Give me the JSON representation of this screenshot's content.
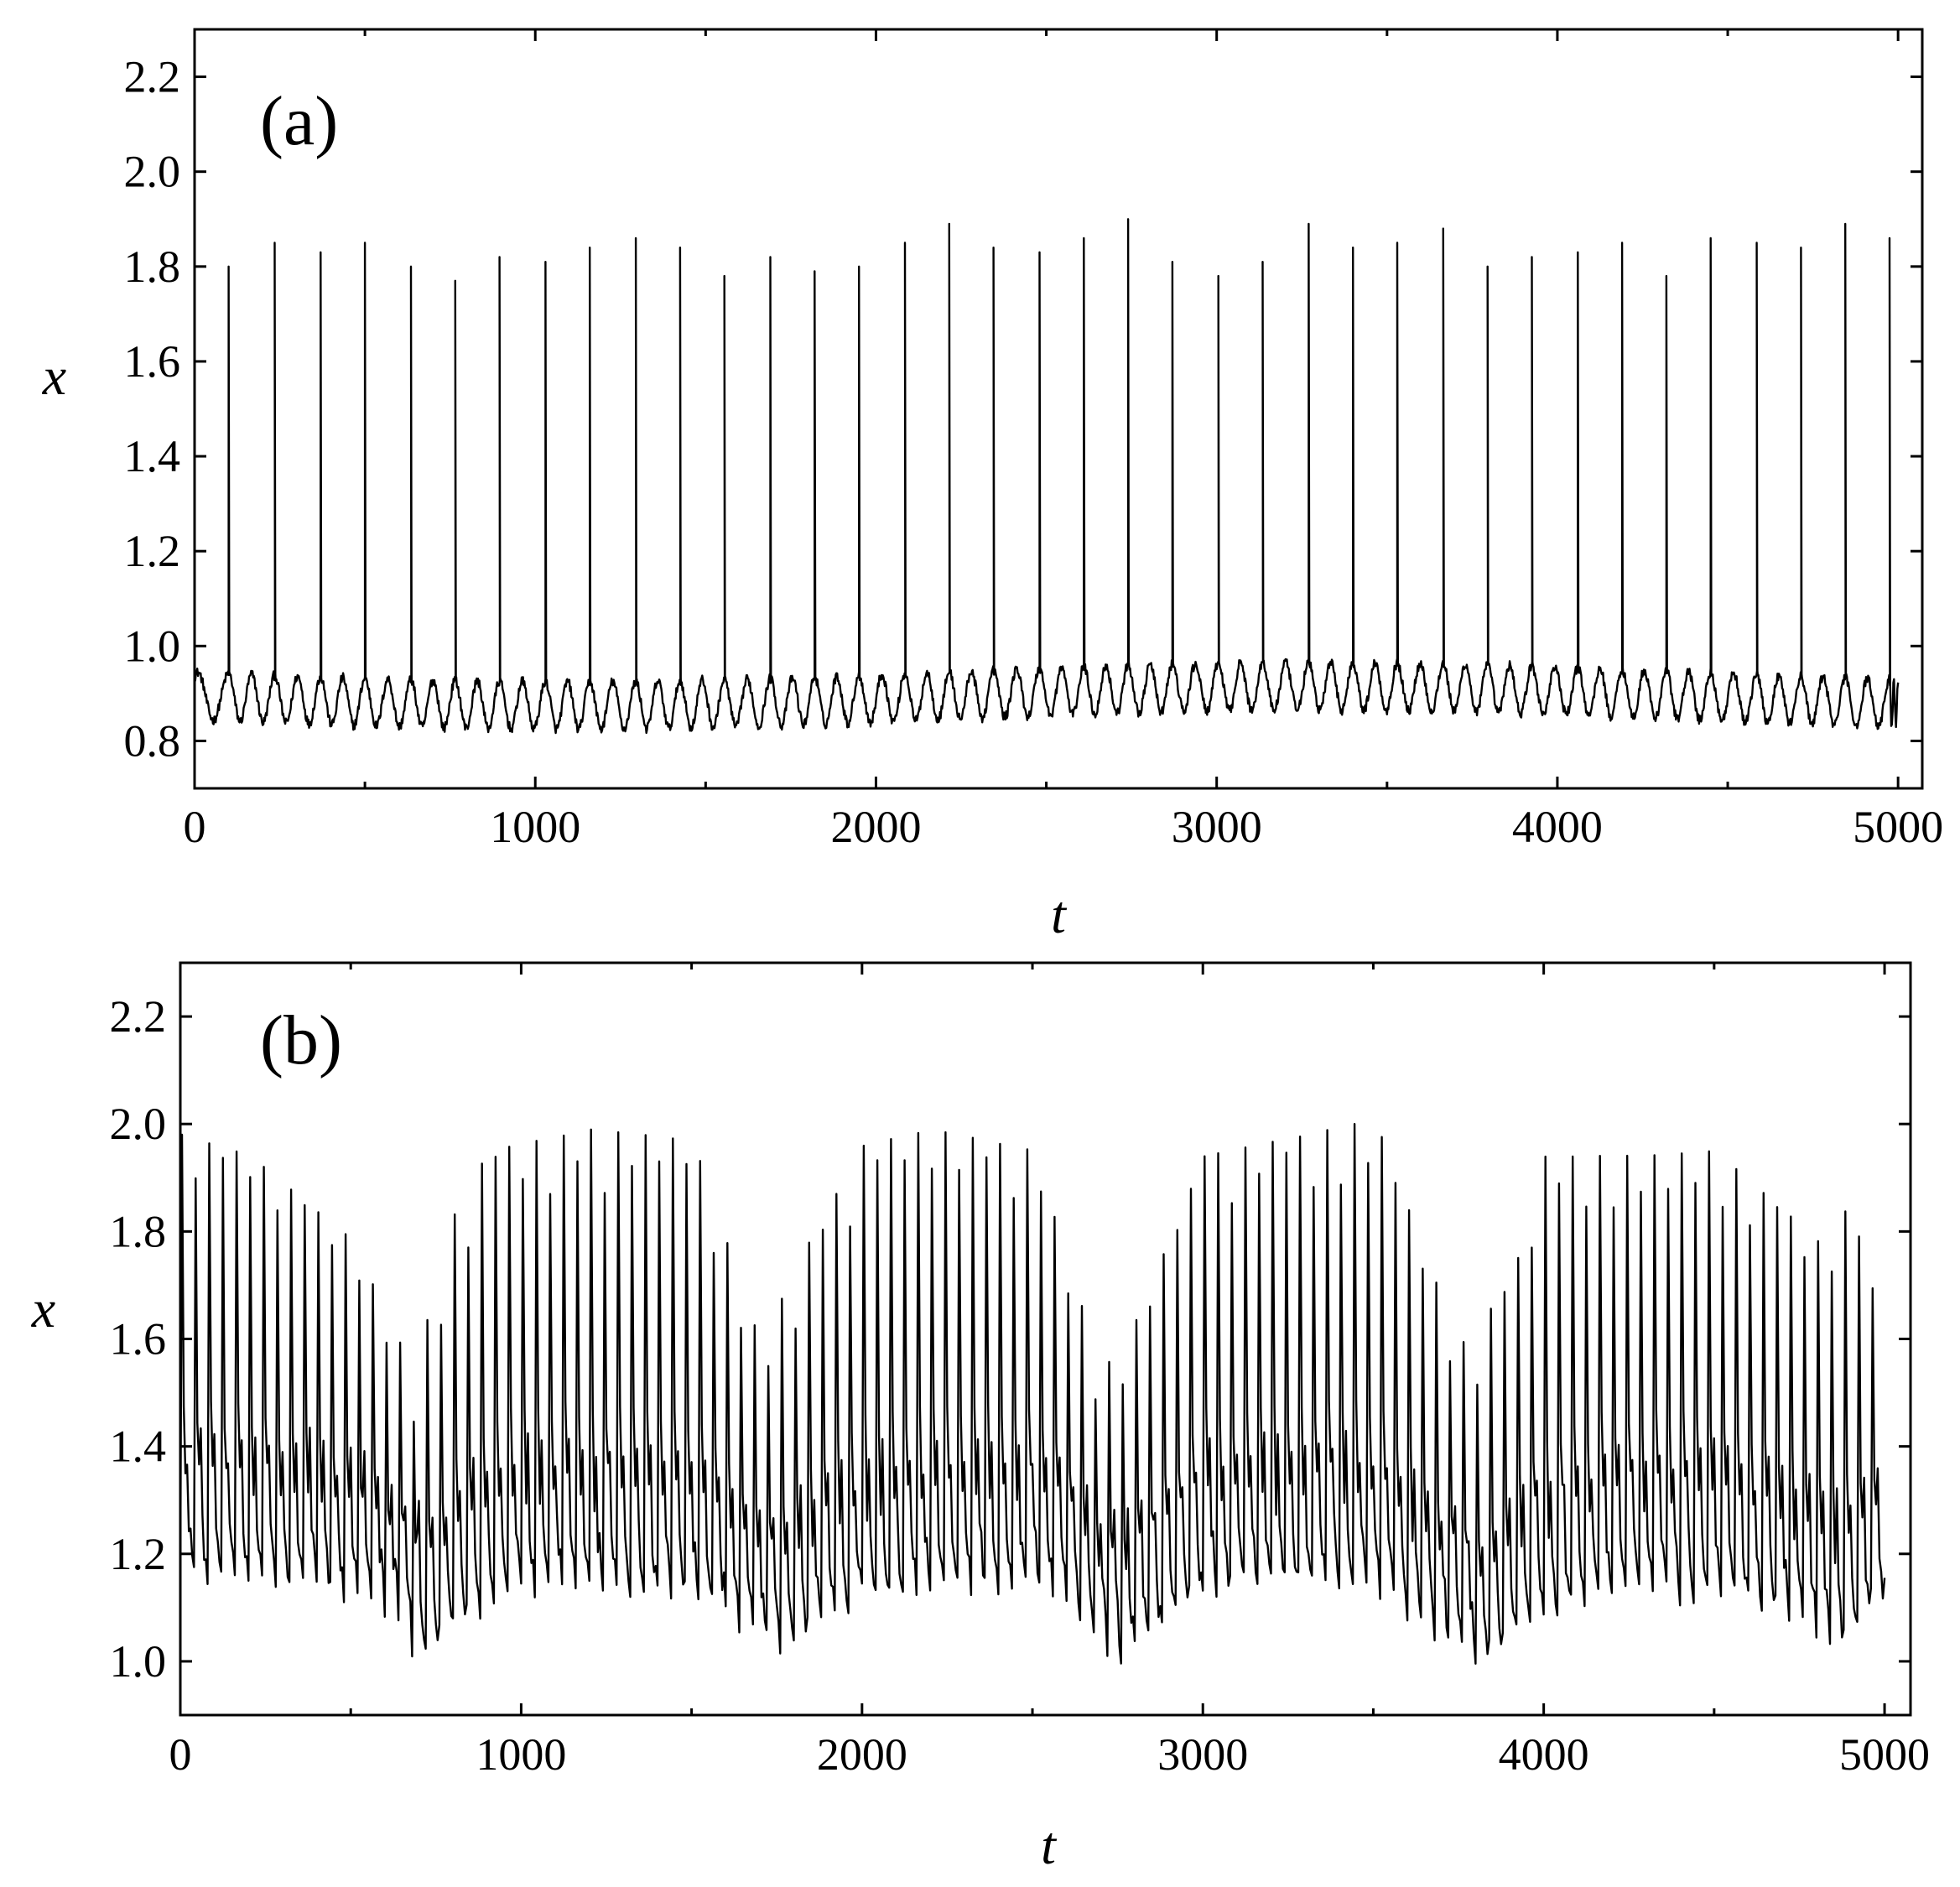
{
  "chart_data": [
    {
      "type": "line",
      "panel_label": "(a)",
      "xlabel": "t",
      "ylabel": "x",
      "xlim": [
        0,
        5000
      ],
      "ylim": [
        0.7,
        2.3
      ],
      "xticks": [
        "0",
        "1000",
        "2000",
        "3000",
        "4000",
        "5000"
      ],
      "yticks": [
        "0.8",
        "1.0",
        "1.2",
        "1.4",
        "1.6",
        "1.8",
        "2.0",
        "2.2"
      ],
      "grid": false,
      "series": [
        {
          "spike_times": [
            100,
            235,
            370,
            500,
            635,
            765,
            895,
            1030,
            1160,
            1295,
            1425,
            1555,
            1690,
            1820,
            1950,
            2085,
            2215,
            2345,
            2480,
            2610,
            2740,
            2870,
            3005,
            3135,
            3270,
            3400,
            3530,
            3665,
            3795,
            3925,
            4060,
            4190,
            4320,
            4450,
            4585,
            4715,
            4845,
            4975
          ],
          "spike_peaks": [
            1.8,
            1.85,
            1.83,
            1.85,
            1.8,
            1.77,
            1.82,
            1.81,
            1.84,
            1.86,
            1.84,
            1.78,
            1.82,
            1.79,
            1.8,
            1.85,
            1.89,
            1.84,
            1.83,
            1.86,
            1.9,
            1.81,
            1.78,
            1.81,
            1.89,
            1.84,
            1.85,
            1.88,
            1.8,
            1.82,
            1.83,
            1.85,
            1.78,
            1.86,
            1.85,
            1.84,
            1.89,
            1.86
          ],
          "baseline_range": [
            0.8,
            1.03
          ]
        }
      ]
    },
    {
      "type": "line",
      "panel_label": "(b)",
      "xlabel": "t",
      "ylabel": "x",
      "xlim": [
        0,
        5000
      ],
      "ylim": [
        0.9,
        2.3
      ],
      "xticks": [
        "0",
        "1000",
        "2000",
        "3000",
        "4000",
        "5000"
      ],
      "yticks": [
        "1.0",
        "1.2",
        "1.4",
        "1.6",
        "1.8",
        "2.0",
        "2.2"
      ],
      "grid": false,
      "series": [
        {
          "oscillation_period": 40,
          "peak_range": [
            1.3,
            2.04
          ],
          "trough_range": [
            0.96,
            1.2
          ],
          "peak_envelope": [
            [
              0,
              2.0
            ],
            [
              200,
              1.96
            ],
            [
              500,
              1.8
            ],
            [
              680,
              1.55
            ],
            [
              800,
              1.85
            ],
            [
              900,
              1.97
            ],
            [
              1200,
              2.01
            ],
            [
              1500,
              1.99
            ],
            [
              1700,
              1.6
            ],
            [
              1800,
              1.75
            ],
            [
              2000,
              1.98
            ],
            [
              2200,
              2.01
            ],
            [
              2500,
              1.97
            ],
            [
              2700,
              1.55
            ],
            [
              2800,
              1.65
            ],
            [
              3000,
              1.96
            ],
            [
              3300,
              2.0
            ],
            [
              3500,
              2.03
            ],
            [
              3750,
              1.6
            ],
            [
              3900,
              1.72
            ],
            [
              4000,
              1.96
            ],
            [
              4300,
              1.96
            ],
            [
              4500,
              1.97
            ],
            [
              4800,
              1.8
            ],
            [
              4900,
              1.87
            ],
            [
              5000,
              1.6
            ]
          ],
          "trough_envelope": [
            [
              0,
              1.13
            ],
            [
              300,
              1.12
            ],
            [
              600,
              1.08
            ],
            [
              700,
              0.98
            ],
            [
              800,
              1.05
            ],
            [
              1000,
              1.12
            ],
            [
              1500,
              1.1
            ],
            [
              1750,
              1.0
            ],
            [
              2000,
              1.1
            ],
            [
              2500,
              1.12
            ],
            [
              2750,
              0.99
            ],
            [
              2850,
              1.03
            ],
            [
              3000,
              1.12
            ],
            [
              3500,
              1.12
            ],
            [
              3800,
              0.97
            ],
            [
              3950,
              1.05
            ],
            [
              4200,
              1.12
            ],
            [
              4700,
              1.08
            ],
            [
              4850,
              1.0
            ],
            [
              5000,
              1.12
            ]
          ]
        }
      ]
    }
  ]
}
